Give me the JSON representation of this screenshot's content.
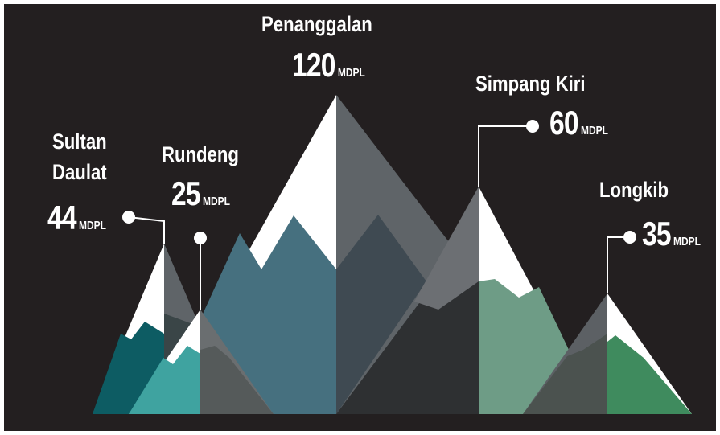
{
  "peaks": [
    {
      "name": "Penanggalan",
      "value": 120,
      "unit": "MDPL"
    },
    {
      "name": "Sultan Daulat",
      "value": 44,
      "unit": "MDPL"
    },
    {
      "name": "Rundeng",
      "value": 25,
      "unit": "MDPL"
    },
    {
      "name": "Simpang Kiri",
      "value": 60,
      "unit": "MDPL"
    },
    {
      "name": "Longkib",
      "value": 35,
      "unit": "MDPL"
    }
  ]
}
